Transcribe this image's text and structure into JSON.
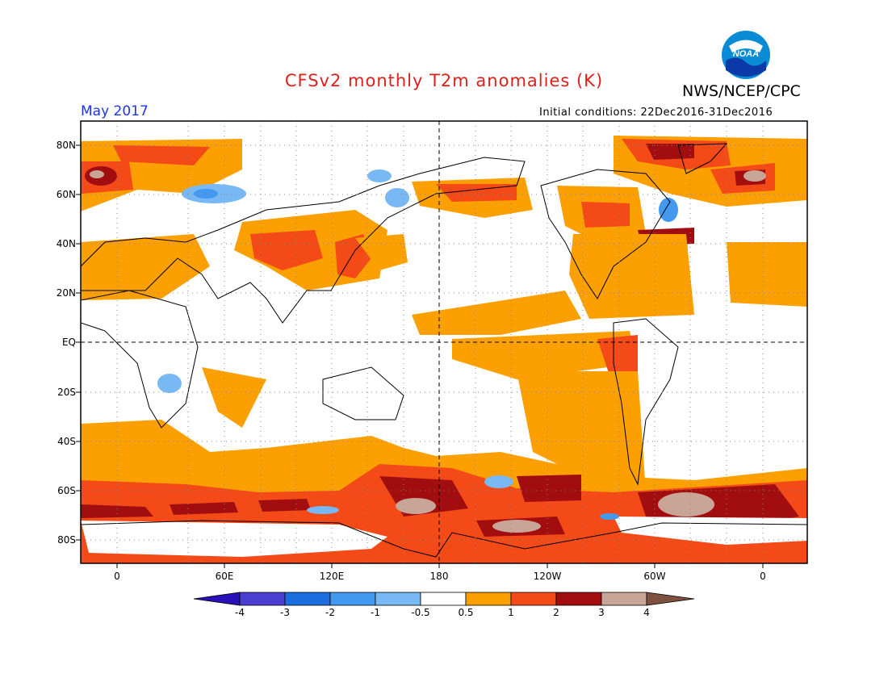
{
  "header": {
    "title": "CFSv2 monthly T2m anomalies (K)",
    "agency": "NWS/NCEP/CPC",
    "valid_month": "May 2017",
    "initial_conditions": "Initial conditions: 22Dec2016-31Dec2016"
  },
  "logo": {
    "text": "NOAA",
    "icon": "noaa-logo-icon"
  },
  "axes": {
    "lat_labels": [
      "80N",
      "60N",
      "40N",
      "20N",
      "EQ",
      "20S",
      "40S",
      "60S",
      "80S"
    ],
    "lon_labels": [
      "0",
      "60E",
      "120E",
      "180",
      "120W",
      "60W",
      "0"
    ]
  },
  "colorbar": {
    "labels": [
      "-4",
      "-3",
      "-2",
      "-1",
      "-0.5",
      "0.5",
      "1",
      "2",
      "3",
      "4"
    ],
    "colors": [
      "#2a10b8",
      "#4a3ed2",
      "#1c6ee0",
      "#4399ef",
      "#78b9f5",
      "#ffffff",
      "#fba000",
      "#f34a18",
      "#a20e10",
      "#c9a598",
      "#7e5040"
    ]
  },
  "map_colors": {
    "land_outline": "#000000",
    "anomaly_05_1": "#fba000",
    "anomaly_1_2": "#f34a18",
    "anomaly_2_3": "#a20e10",
    "anomaly_3_4": "#c9a598",
    "anomaly_neg": "#78b9f5",
    "anomaly_neg_strong": "#4399ef"
  }
}
